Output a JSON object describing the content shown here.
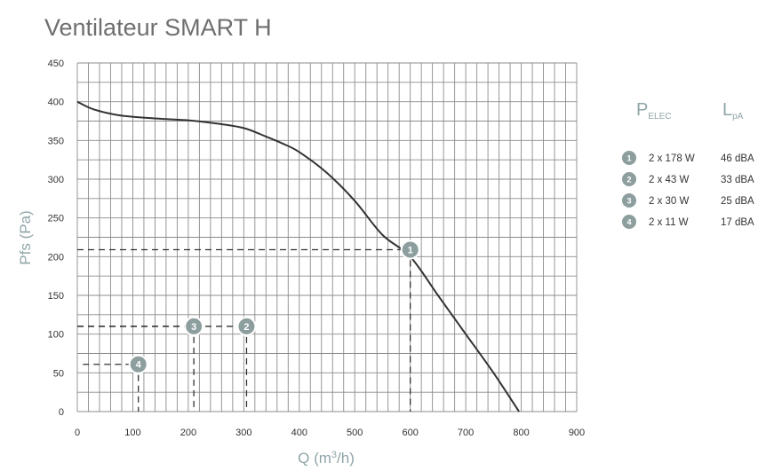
{
  "chart_data": {
    "type": "line",
    "title": "Ventilateur SMART H",
    "xlabel_base": "Q (m",
    "xlabel_sup": "3",
    "xlabel_tail": "/h)",
    "ylabel": "Pfs (Pa)",
    "xlim": [
      0,
      900
    ],
    "ylim": [
      0,
      450
    ],
    "x_major_ticks": [
      0,
      100,
      200,
      300,
      400,
      500,
      600,
      700,
      800,
      900
    ],
    "y_major_ticks": [
      0,
      50,
      100,
      150,
      200,
      250,
      300,
      350,
      400,
      450
    ],
    "x_grid_step": 20,
    "y_grid_step": 25,
    "grid": true,
    "curve": {
      "x": [
        0,
        30,
        80,
        150,
        200,
        250,
        300,
        340,
        370,
        400,
        450,
        500,
        550,
        600,
        650,
        700,
        750,
        796
      ],
      "y": [
        400,
        390,
        382,
        378,
        376,
        372,
        366,
        355,
        346,
        335,
        308,
        272,
        228,
        200,
        150,
        100,
        50,
        0
      ]
    },
    "operating_points": [
      {
        "label": "1",
        "x": 600,
        "y": 209,
        "hline_from": 0
      },
      {
        "label": "2",
        "x": 305,
        "y": 110,
        "hline_from": 0
      },
      {
        "label": "3",
        "x": 210,
        "y": 110,
        "hline_from": 0
      },
      {
        "label": "4",
        "x": 110,
        "y": 61,
        "hline_from": 10
      }
    ],
    "legend": {
      "header_p_main": "P",
      "header_p_sub": "ELEC",
      "header_l_main": "L",
      "header_l_sub": "pA",
      "rows": [
        {
          "badge": "1",
          "power": "2 x 178 W",
          "noise": "46 dBA"
        },
        {
          "badge": "2",
          "power": "2 x 43 W",
          "noise": "33 dBA"
        },
        {
          "badge": "3",
          "power": "2 x 30 W",
          "noise": "25 dBA"
        },
        {
          "badge": "4",
          "power": "2 x 11 W",
          "noise": "17 dBA"
        }
      ]
    }
  },
  "colors": {
    "grid": "#8c8c8c",
    "curve": "#333333",
    "marker_fill": "#8d9e9f",
    "marker_stroke": "#ffffff",
    "dash": "#333333"
  }
}
